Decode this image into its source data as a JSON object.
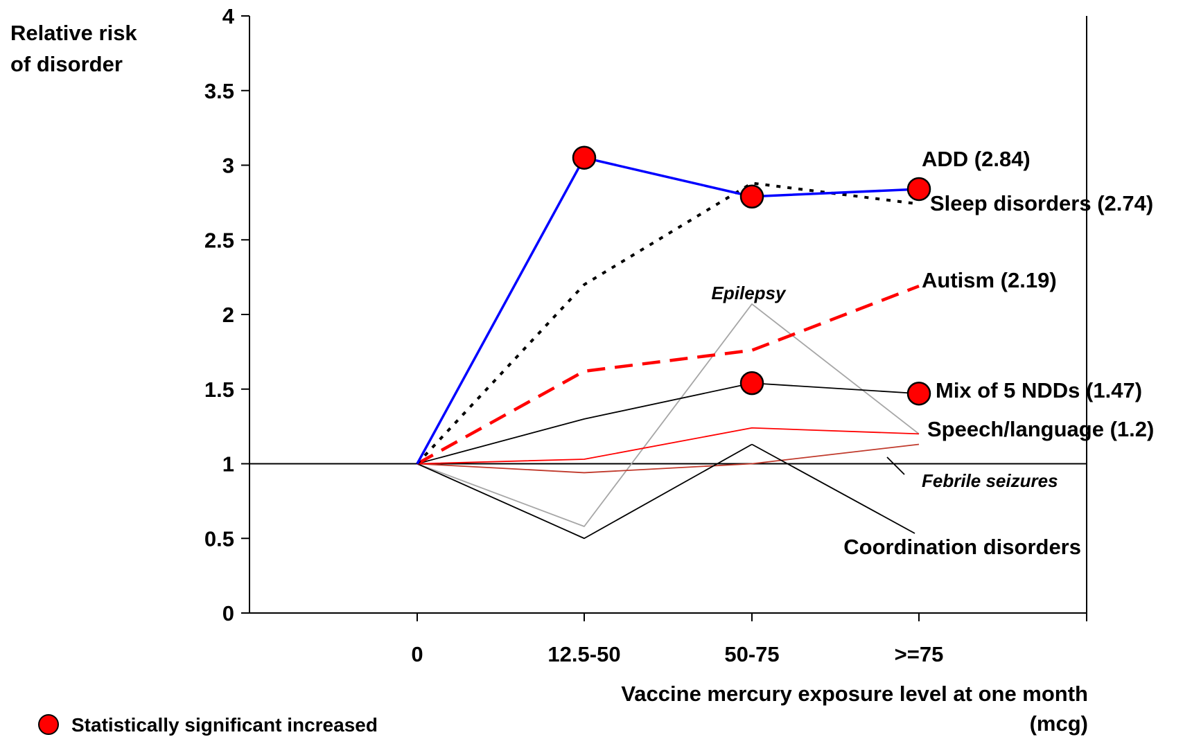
{
  "chart_data": {
    "type": "line",
    "ylabel_lines": [
      "Relative risk",
      "of disorder"
    ],
    "xlabel_lines": [
      "Vaccine mercury exposure level at one month",
      "(mcg)"
    ],
    "categories": [
      "0",
      "12.5-50",
      "50-75",
      ">=75"
    ],
    "ylim": [
      0,
      4
    ],
    "yticks": [
      "0",
      "0.5",
      "1",
      "1.5",
      "2",
      "2.5",
      "3",
      "3.5",
      "4"
    ],
    "reference_line": 1,
    "grid": false,
    "legend": {
      "label": "Statistically significant increased",
      "marker_color": "#ff0000",
      "position": "bottom-left"
    },
    "series": [
      {
        "name": "ADD (2.84)",
        "values": [
          1.0,
          3.05,
          2.79,
          2.84
        ],
        "color": "#0000ff",
        "style": "solid-thick",
        "significant": [
          false,
          true,
          true,
          true
        ]
      },
      {
        "name": "Sleep disorders (2.74)",
        "values": [
          1.0,
          2.2,
          2.88,
          2.74
        ],
        "color": "#000000",
        "style": "dotted",
        "significant": [
          false,
          false,
          false,
          false
        ]
      },
      {
        "name": "Autism (2.19)",
        "values": [
          1.0,
          1.62,
          1.76,
          2.19
        ],
        "color": "#ff0000",
        "style": "dashed",
        "significant": [
          false,
          false,
          false,
          false
        ]
      },
      {
        "name": "Epilepsy",
        "values": [
          1.0,
          0.58,
          2.07,
          1.2
        ],
        "color": "#a6a6a6",
        "style": "solid-thin",
        "italic": true,
        "significant": [
          false,
          false,
          false,
          false
        ]
      },
      {
        "name": "Mix of 5 NDDs (1.47)",
        "values": [
          1.0,
          1.3,
          1.54,
          1.47
        ],
        "color": "#000000",
        "style": "solid-thin",
        "significant": [
          false,
          false,
          true,
          true
        ]
      },
      {
        "name": "Speech/language (1.2)",
        "values": [
          1.0,
          1.03,
          1.24,
          1.2
        ],
        "color": "#ff0000",
        "style": "solid-thin",
        "significant": [
          false,
          false,
          false,
          false
        ]
      },
      {
        "name": "Febrile seizures",
        "values": [
          1.0,
          0.94,
          1.0,
          1.13
        ],
        "color": "#c0392b",
        "style": "solid-thin",
        "italic": true,
        "significant": [
          false,
          false,
          false,
          false
        ]
      },
      {
        "name": "Coordination disorders",
        "values": [
          1.0,
          0.5,
          1.13,
          null
        ],
        "color": "#000000",
        "style": "solid-thin",
        "significant": [
          false,
          false,
          false,
          false
        ]
      }
    ]
  }
}
